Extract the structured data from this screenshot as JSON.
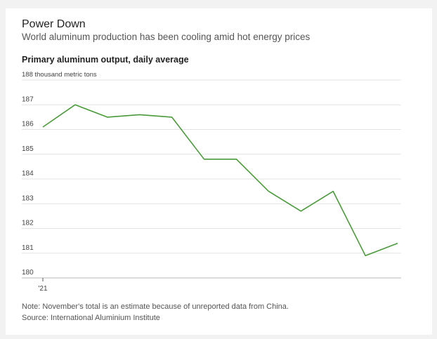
{
  "header": {
    "title": "Power Down",
    "subtitle": "World aluminum production has been cooling amid hot energy prices"
  },
  "chart_data": {
    "type": "line",
    "title": "Primary aluminum output, daily average",
    "ylabel": "188 thousand metric tons",
    "ylim": [
      180,
      188
    ],
    "yticks": [
      {
        "value": 188,
        "label": "188 thousand metric tons"
      },
      {
        "value": 187,
        "label": "187"
      },
      {
        "value": 186,
        "label": "186"
      },
      {
        "value": 185,
        "label": "185"
      },
      {
        "value": 184,
        "label": "184"
      },
      {
        "value": 183,
        "label": "183"
      },
      {
        "value": 182,
        "label": "182"
      },
      {
        "value": 181,
        "label": "181"
      },
      {
        "value": 180,
        "label": "180"
      }
    ],
    "xtick_label": "'21",
    "grid": true,
    "color": "#4a9a3a",
    "series": [
      {
        "values": [
          186.1,
          187.0,
          186.5,
          186.6,
          186.5,
          184.8,
          184.8,
          183.5,
          182.7,
          183.5,
          180.9,
          181.4
        ]
      }
    ]
  },
  "footer": {
    "note": "Note: November's total is an estimate because of unreported data from China.",
    "source": "Source: International Aluminium Institute"
  }
}
